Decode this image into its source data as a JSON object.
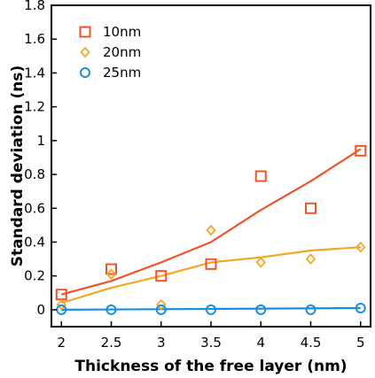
{
  "chart_data": {
    "type": "scatter",
    "xlabel": "Thickness of the free layer (nm)",
    "ylabel": "Standard deviation (ns)",
    "xlim": [
      1.9,
      5.1
    ],
    "ylim": [
      -0.1,
      1.8
    ],
    "xticks": [
      "2",
      "2.5",
      "3",
      "3.5",
      "4",
      "4.5",
      "5"
    ],
    "yticks": [
      "0",
      "0.2",
      "0.4",
      "0.6",
      "0.8",
      "1",
      "1.2",
      "1.4",
      "1.6",
      "1.8"
    ],
    "x": [
      2,
      2.5,
      3,
      3.5,
      4,
      4.5,
      5
    ],
    "legend_position": "top-left",
    "series": [
      {
        "name": "10nm",
        "marker": "square",
        "color": "#f05327",
        "values": [
          0.09,
          0.24,
          0.2,
          0.27,
          0.79,
          0.6,
          0.94
        ],
        "fit_x": [
          2,
          2.5,
          3,
          3.5,
          4,
          4.5,
          5
        ],
        "fit": [
          0.09,
          0.17,
          0.28,
          0.4,
          0.59,
          0.76,
          0.95
        ]
      },
      {
        "name": "20nm",
        "marker": "diamond",
        "color": "#f5a623",
        "values": [
          0.03,
          0.21,
          0.03,
          0.47,
          0.28,
          0.3,
          0.37
        ],
        "fit_x": [
          2,
          2.5,
          3,
          3.5,
          4,
          4.5,
          5
        ],
        "fit": [
          0.04,
          0.13,
          0.2,
          0.28,
          0.31,
          0.35,
          0.37
        ]
      },
      {
        "name": "25nm",
        "marker": "circle",
        "color": "#1a8fe0",
        "values": [
          0.0,
          0.0,
          0.0,
          0.0,
          0.0,
          0.0,
          0.01
        ],
        "fit_x": [
          2,
          5
        ],
        "fit": [
          0.0,
          0.01
        ]
      }
    ]
  }
}
